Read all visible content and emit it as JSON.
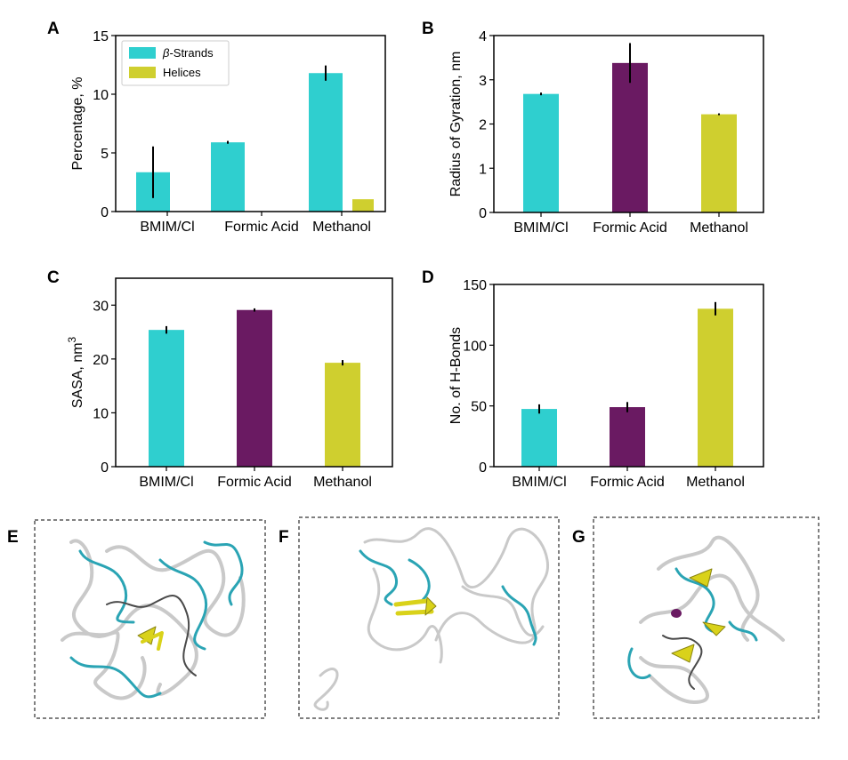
{
  "colors": {
    "cyan": "#2fcfcf",
    "purple": "#6a1a62",
    "olive": "#cfcf2f",
    "ribbon_white": "#cccccc",
    "ribbon_cyan": "#2aa4b4",
    "ribbon_yellow": "#d9d21a"
  },
  "chart_data": [
    {
      "panel": "A",
      "type": "bar",
      "categories": [
        "BMIM/Cl",
        "Formic Acid",
        "Methanol"
      ],
      "series": [
        {
          "name": "β-Strands",
          "color": "#2fcfcf",
          "values": [
            3.35,
            5.9,
            11.8
          ],
          "errors": [
            2.2,
            0.12,
            0.65
          ]
        },
        {
          "name": "Helices",
          "color": "#cfcf2f",
          "values": [
            0,
            0,
            1.05
          ],
          "errors": [
            0,
            0,
            0
          ]
        }
      ],
      "legend": {
        "position": "top-left",
        "entries": [
          {
            "prefix": "β",
            "label": "-Strands"
          },
          {
            "prefix": "",
            "label": "Helices"
          }
        ]
      },
      "ylabel": "Percentage, %",
      "ylim": [
        0,
        15
      ],
      "yticks": [
        "0",
        "5",
        "10",
        "15"
      ]
    },
    {
      "panel": "B",
      "type": "bar",
      "categories": [
        "BMIM/Cl",
        "Formic Acid",
        "Methanol"
      ],
      "values": [
        2.68,
        3.38,
        2.22
      ],
      "errors": [
        0.03,
        0.45,
        0.02
      ],
      "colors": [
        "#2fcfcf",
        "#6a1a62",
        "#cfcf2f"
      ],
      "ylabel": "Radius of Gyration, nm",
      "ylim": [
        0,
        4
      ],
      "yticks": [
        "0",
        "1",
        "2",
        "3",
        "4"
      ]
    },
    {
      "panel": "C",
      "type": "bar",
      "categories": [
        "BMIM/Cl",
        "Formic Acid",
        "Methanol"
      ],
      "values": [
        25.4,
        29.1,
        19.3
      ],
      "errors": [
        0.7,
        0.3,
        0.5
      ],
      "colors": [
        "#2fcfcf",
        "#6a1a62",
        "#cfcf2f"
      ],
      "ylabel": "SASA, nm",
      "ylabel_sup": "3",
      "ylim": [
        0,
        35
      ],
      "yticks": [
        "0",
        "10",
        "20",
        "30"
      ]
    },
    {
      "panel": "D",
      "type": "bar",
      "categories": [
        "BMIM/Cl",
        "Formic Acid",
        "Methanol"
      ],
      "values": [
        47.5,
        49.0,
        130.0
      ],
      "errors": [
        3.8,
        4.2,
        5.5
      ],
      "colors": [
        "#2fcfcf",
        "#6a1a62",
        "#cfcf2f"
      ],
      "ylabel": "No. of H-Bonds",
      "ylim": [
        0,
        150
      ],
      "yticks": [
        "0",
        "50",
        "100",
        "150"
      ]
    }
  ],
  "structures": [
    {
      "panel": "E",
      "description_name": "protein-structure-bmim"
    },
    {
      "panel": "F",
      "description_name": "protein-structure-formic-acid"
    },
    {
      "panel": "G",
      "description_name": "protein-structure-methanol"
    }
  ]
}
